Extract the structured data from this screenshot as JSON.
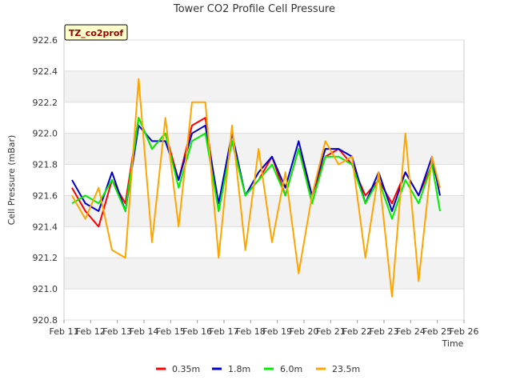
{
  "chart_data": {
    "type": "line",
    "title": "Tower CO2 Profile Cell Pressure",
    "site_badge": "TZ_co2prof",
    "xlabel": "Time",
    "ylabel": "Cell Pressure (mBar)",
    "ylim": [
      920.8,
      922.6
    ],
    "yticks": [
      "920.8",
      "921.0",
      "921.2",
      "921.4",
      "921.6",
      "921.8",
      "922.0",
      "922.2",
      "922.4",
      "922.6"
    ],
    "xlim": [
      11,
      26
    ],
    "xticks": [
      "Feb 11",
      "Feb 12",
      "Feb 13",
      "Feb 14",
      "Feb 15",
      "Feb 16",
      "Feb 17",
      "Feb 18",
      "Feb 19",
      "Feb 20",
      "Feb 21",
      "Feb 22",
      "Feb 23",
      "Feb 24",
      "Feb 25",
      "Feb 26"
    ],
    "grid": true,
    "legend_position": "bottom",
    "x_day": [
      11.3,
      11.8,
      12.3,
      12.8,
      13.3,
      13.8,
      14.3,
      14.8,
      15.3,
      15.8,
      16.3,
      16.8,
      17.3,
      17.8,
      18.3,
      18.8,
      19.3,
      19.8,
      20.3,
      20.8,
      21.3,
      21.8,
      22.3,
      22.8,
      23.3,
      23.8,
      24.3,
      24.8,
      25.1
    ],
    "series": [
      {
        "name": "0.35m",
        "color": "#ff0000",
        "values": [
          921.65,
          921.5,
          921.4,
          921.7,
          921.55,
          922.1,
          921.9,
          922.0,
          921.7,
          922.05,
          922.1,
          921.5,
          921.95,
          921.6,
          921.7,
          921.85,
          921.6,
          921.9,
          921.6,
          921.85,
          921.9,
          921.8,
          921.6,
          921.7,
          921.55,
          921.75,
          921.6,
          921.8,
          921.65
        ]
      },
      {
        "name": "1.8m",
        "color": "#0000cc",
        "values": [
          921.7,
          921.55,
          921.5,
          921.75,
          921.5,
          922.05,
          921.95,
          921.95,
          921.7,
          922.0,
          922.05,
          921.55,
          922.0,
          921.6,
          921.75,
          921.85,
          921.65,
          921.95,
          921.6,
          921.9,
          921.9,
          921.85,
          921.55,
          921.75,
          921.5,
          921.75,
          921.6,
          921.85,
          921.6
        ]
      },
      {
        "name": "6.0m",
        "color": "#00ee00",
        "values": [
          921.55,
          921.6,
          921.55,
          921.7,
          921.5,
          922.1,
          921.9,
          922.0,
          921.65,
          921.95,
          922.0,
          921.5,
          921.95,
          921.6,
          921.7,
          921.8,
          921.6,
          921.9,
          921.55,
          921.85,
          921.85,
          921.8,
          921.55,
          921.7,
          921.45,
          921.7,
          921.55,
          921.8,
          921.5
        ]
      },
      {
        "name": "23.5m",
        "color": "#ffa500",
        "values": [
          921.6,
          921.45,
          921.65,
          921.25,
          921.2,
          922.35,
          921.3,
          922.1,
          921.4,
          922.2,
          922.2,
          921.2,
          922.05,
          921.25,
          921.9,
          921.3,
          921.75,
          921.1,
          921.6,
          921.95,
          921.8,
          921.85,
          921.2,
          921.75,
          920.95,
          922.0,
          921.05,
          921.85,
          921.65
        ]
      }
    ]
  }
}
